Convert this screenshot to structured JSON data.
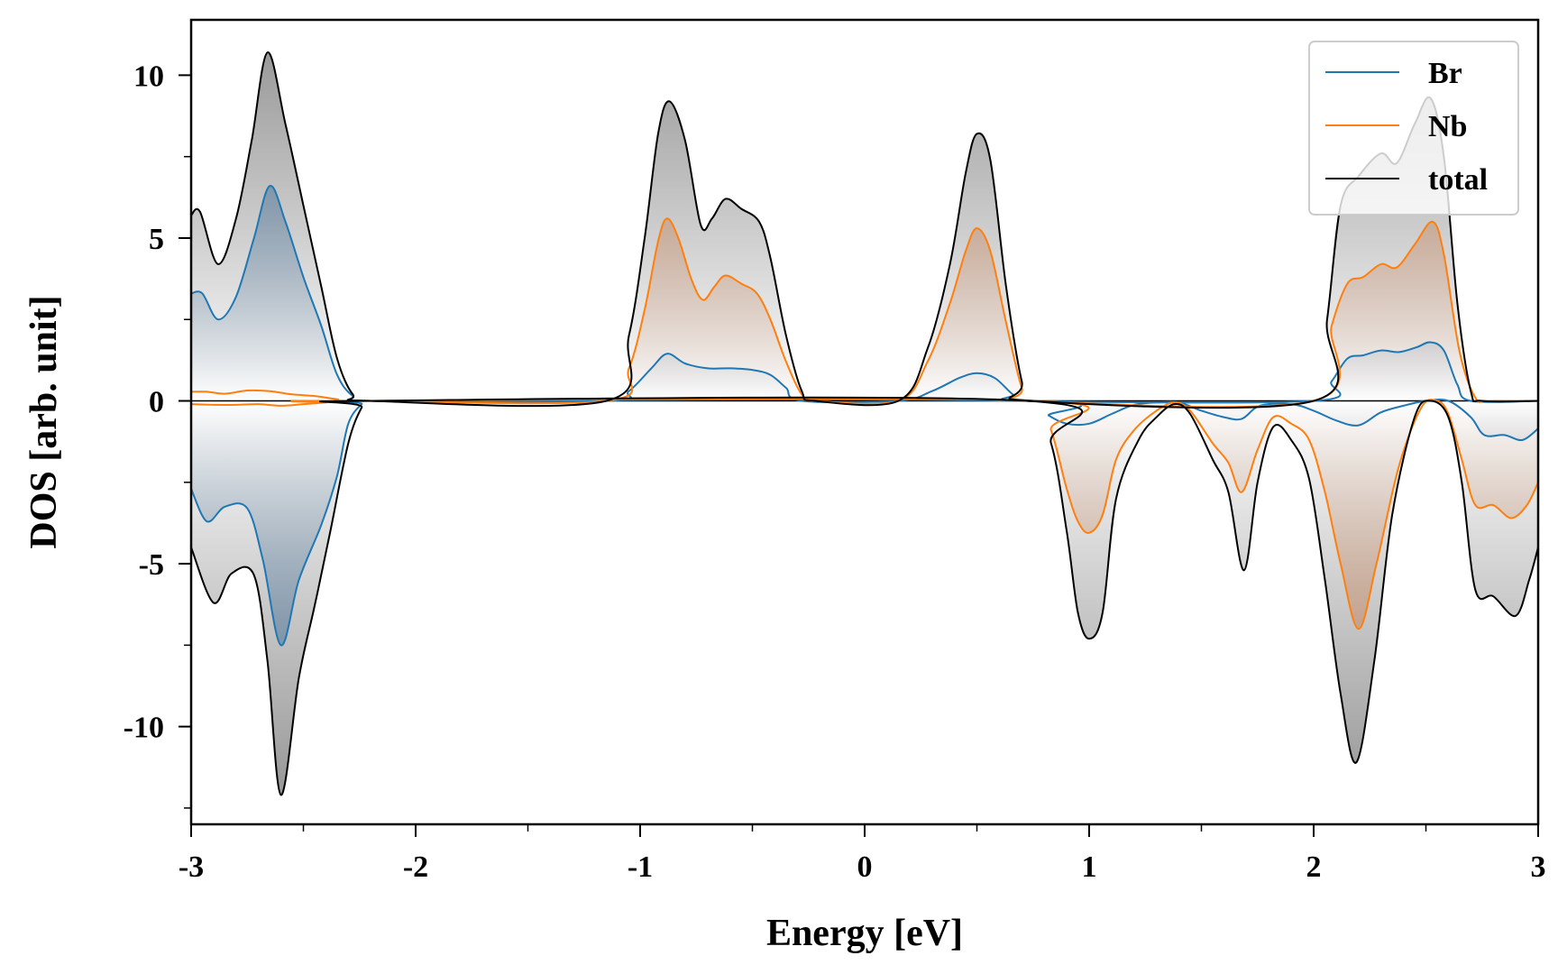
{
  "chart_data": {
    "type": "area",
    "title": "",
    "xlabel": "Energy [eV]",
    "ylabel": "DOS [arb. unit]",
    "xlim": [
      -3,
      3
    ],
    "ylim": [
      -13,
      11.7
    ],
    "xticks": [
      -3,
      -2,
      -1,
      0,
      1,
      2,
      3
    ],
    "xtick_labels": [
      "-3",
      "-2",
      "-1",
      "0",
      "1",
      "2",
      "3"
    ],
    "yticks": [
      -10,
      -5,
      0,
      5,
      10
    ],
    "ytick_labels": [
      "-10",
      "-5",
      "0",
      "5",
      "10"
    ],
    "grid": false,
    "legend": {
      "placement": "top-right",
      "entries": [
        {
          "label": "Br",
          "color": "#1f77b4"
        },
        {
          "label": "Nb",
          "color": "#ff7f0e"
        },
        {
          "label": "total",
          "color": "#000000"
        }
      ]
    },
    "fill_colors": {
      "Br": "#4a7296",
      "Nb": "#c4835a",
      "total": "#8a8a8a"
    },
    "series": [
      {
        "name": "Br",
        "color": "#1f77b4",
        "spin_up": [
          [
            -3.0,
            3.3
          ],
          [
            -2.95,
            3.3
          ],
          [
            -2.88,
            2.5
          ],
          [
            -2.8,
            3.2
          ],
          [
            -2.72,
            5.0
          ],
          [
            -2.65,
            6.6
          ],
          [
            -2.58,
            5.5
          ],
          [
            -2.5,
            3.8
          ],
          [
            -2.42,
            2.3
          ],
          [
            -2.35,
            0.8
          ],
          [
            -2.28,
            0.15
          ],
          [
            -2.2,
            0.0
          ],
          [
            -1.15,
            0.0
          ],
          [
            -1.05,
            0.3
          ],
          [
            -0.95,
            1.0
          ],
          [
            -0.88,
            1.45
          ],
          [
            -0.8,
            1.15
          ],
          [
            -0.7,
            1.0
          ],
          [
            -0.6,
            1.0
          ],
          [
            -0.5,
            0.95
          ],
          [
            -0.42,
            0.8
          ],
          [
            -0.35,
            0.4
          ],
          [
            -0.28,
            0.0
          ],
          [
            0.15,
            0.0
          ],
          [
            0.3,
            0.3
          ],
          [
            0.42,
            0.7
          ],
          [
            0.5,
            0.85
          ],
          [
            0.58,
            0.7
          ],
          [
            0.66,
            0.2
          ],
          [
            0.72,
            0.0
          ],
          [
            2.0,
            0.0
          ],
          [
            2.08,
            0.6
          ],
          [
            2.15,
            1.3
          ],
          [
            2.22,
            1.4
          ],
          [
            2.3,
            1.55
          ],
          [
            2.38,
            1.5
          ],
          [
            2.46,
            1.65
          ],
          [
            2.52,
            1.8
          ],
          [
            2.58,
            1.55
          ],
          [
            2.64,
            0.5
          ],
          [
            2.7,
            0.0
          ],
          [
            3.0,
            0.0
          ]
        ],
        "spin_down": [
          [
            -3.0,
            -2.7
          ],
          [
            -2.93,
            -3.7
          ],
          [
            -2.85,
            -3.25
          ],
          [
            -2.75,
            -3.3
          ],
          [
            -2.68,
            -4.9
          ],
          [
            -2.6,
            -7.5
          ],
          [
            -2.52,
            -5.5
          ],
          [
            -2.42,
            -3.8
          ],
          [
            -2.35,
            -2.3
          ],
          [
            -2.3,
            -0.7
          ],
          [
            -2.24,
            -0.1
          ],
          [
            -2.2,
            0.0
          ],
          [
            0.72,
            0.0
          ],
          [
            0.82,
            -0.45
          ],
          [
            0.9,
            -0.7
          ],
          [
            1.0,
            -0.7
          ],
          [
            1.1,
            -0.4
          ],
          [
            1.2,
            -0.12
          ],
          [
            1.3,
            -0.05
          ],
          [
            1.4,
            -0.05
          ],
          [
            1.5,
            -0.3
          ],
          [
            1.6,
            -0.5
          ],
          [
            1.68,
            -0.55
          ],
          [
            1.76,
            -0.15
          ],
          [
            1.9,
            -0.1
          ],
          [
            2.0,
            -0.3
          ],
          [
            2.1,
            -0.6
          ],
          [
            2.2,
            -0.75
          ],
          [
            2.3,
            -0.35
          ],
          [
            2.4,
            -0.15
          ],
          [
            2.5,
            0.0
          ],
          [
            2.6,
            0.0
          ],
          [
            2.7,
            -0.5
          ],
          [
            2.76,
            -1.05
          ],
          [
            2.85,
            -1.05
          ],
          [
            2.93,
            -1.2
          ],
          [
            3.0,
            -0.85
          ]
        ]
      },
      {
        "name": "Nb",
        "color": "#ff7f0e",
        "spin_up": [
          [
            -3.0,
            0.28
          ],
          [
            -2.93,
            0.28
          ],
          [
            -2.85,
            0.22
          ],
          [
            -2.75,
            0.32
          ],
          [
            -2.65,
            0.3
          ],
          [
            -2.55,
            0.2
          ],
          [
            -2.45,
            0.15
          ],
          [
            -2.35,
            0.05
          ],
          [
            -2.25,
            0.0
          ],
          [
            -1.15,
            0.0
          ],
          [
            -1.05,
            1.0
          ],
          [
            -0.98,
            2.8
          ],
          [
            -0.92,
            4.9
          ],
          [
            -0.88,
            5.6
          ],
          [
            -0.83,
            5.0
          ],
          [
            -0.77,
            3.7
          ],
          [
            -0.72,
            3.1
          ],
          [
            -0.67,
            3.5
          ],
          [
            -0.62,
            3.85
          ],
          [
            -0.55,
            3.6
          ],
          [
            -0.48,
            3.3
          ],
          [
            -0.42,
            2.5
          ],
          [
            -0.35,
            1.2
          ],
          [
            -0.28,
            0.2
          ],
          [
            -0.22,
            0.0
          ],
          [
            0.15,
            0.0
          ],
          [
            0.28,
            1.2
          ],
          [
            0.38,
            3.0
          ],
          [
            0.45,
            4.6
          ],
          [
            0.5,
            5.3
          ],
          [
            0.56,
            4.6
          ],
          [
            0.63,
            2.4
          ],
          [
            0.7,
            0.4
          ],
          [
            0.75,
            0.0
          ],
          [
            2.0,
            0.0
          ],
          [
            2.08,
            2.3
          ],
          [
            2.15,
            3.6
          ],
          [
            2.22,
            3.8
          ],
          [
            2.3,
            4.2
          ],
          [
            2.37,
            4.1
          ],
          [
            2.45,
            4.8
          ],
          [
            2.53,
            5.5
          ],
          [
            2.58,
            4.5
          ],
          [
            2.65,
            1.5
          ],
          [
            2.72,
            0.1
          ],
          [
            2.78,
            0.0
          ],
          [
            3.0,
            0.0
          ]
        ],
        "spin_down": [
          [
            -3.0,
            -0.1
          ],
          [
            -2.9,
            -0.12
          ],
          [
            -2.8,
            -0.12
          ],
          [
            -2.7,
            -0.1
          ],
          [
            -2.6,
            -0.15
          ],
          [
            -2.5,
            -0.1
          ],
          [
            -2.4,
            -0.05
          ],
          [
            -2.3,
            0.0
          ],
          [
            0.75,
            0.0
          ],
          [
            0.83,
            -0.9
          ],
          [
            0.9,
            -2.7
          ],
          [
            0.95,
            -3.7
          ],
          [
            1.0,
            -4.05
          ],
          [
            1.06,
            -3.5
          ],
          [
            1.12,
            -1.8
          ],
          [
            1.2,
            -0.9
          ],
          [
            1.3,
            -0.3
          ],
          [
            1.38,
            -0.05
          ],
          [
            1.45,
            -0.3
          ],
          [
            1.55,
            -1.3
          ],
          [
            1.62,
            -1.9
          ],
          [
            1.68,
            -2.8
          ],
          [
            1.75,
            -1.5
          ],
          [
            1.82,
            -0.5
          ],
          [
            1.9,
            -0.7
          ],
          [
            1.98,
            -1.2
          ],
          [
            2.05,
            -2.8
          ],
          [
            2.12,
            -5.0
          ],
          [
            2.2,
            -7.0
          ],
          [
            2.28,
            -5.0
          ],
          [
            2.38,
            -2.0
          ],
          [
            2.48,
            -0.2
          ],
          [
            2.55,
            0.0
          ],
          [
            2.6,
            -0.4
          ],
          [
            2.66,
            -1.8
          ],
          [
            2.72,
            -3.2
          ],
          [
            2.8,
            -3.2
          ],
          [
            2.88,
            -3.6
          ],
          [
            2.95,
            -3.2
          ],
          [
            3.0,
            -2.5
          ]
        ]
      },
      {
        "name": "total",
        "color": "#000000",
        "spin_up": [
          [
            -3.0,
            5.7
          ],
          [
            -2.96,
            5.8
          ],
          [
            -2.88,
            4.2
          ],
          [
            -2.8,
            5.6
          ],
          [
            -2.73,
            8.0
          ],
          [
            -2.66,
            10.7
          ],
          [
            -2.58,
            8.5
          ],
          [
            -2.5,
            6.0
          ],
          [
            -2.42,
            3.5
          ],
          [
            -2.35,
            1.3
          ],
          [
            -2.28,
            0.2
          ],
          [
            -2.2,
            0.0
          ],
          [
            -1.15,
            0.0
          ],
          [
            -1.05,
            2.0
          ],
          [
            -0.98,
            5.0
          ],
          [
            -0.92,
            8.2
          ],
          [
            -0.87,
            9.2
          ],
          [
            -0.8,
            8.0
          ],
          [
            -0.73,
            5.4
          ],
          [
            -0.68,
            5.6
          ],
          [
            -0.62,
            6.2
          ],
          [
            -0.55,
            5.9
          ],
          [
            -0.47,
            5.5
          ],
          [
            -0.42,
            4.4
          ],
          [
            -0.35,
            2.0
          ],
          [
            -0.28,
            0.3
          ],
          [
            -0.22,
            0.0
          ],
          [
            0.15,
            0.0
          ],
          [
            0.28,
            1.6
          ],
          [
            0.38,
            4.2
          ],
          [
            0.45,
            7.0
          ],
          [
            0.5,
            8.2
          ],
          [
            0.56,
            7.4
          ],
          [
            0.63,
            3.5
          ],
          [
            0.7,
            0.6
          ],
          [
            0.75,
            0.0
          ],
          [
            2.0,
            0.0
          ],
          [
            2.06,
            2.5
          ],
          [
            2.12,
            6.0
          ],
          [
            2.2,
            6.9
          ],
          [
            2.3,
            7.6
          ],
          [
            2.37,
            7.3
          ],
          [
            2.45,
            8.5
          ],
          [
            2.52,
            9.3
          ],
          [
            2.58,
            7.5
          ],
          [
            2.64,
            3.0
          ],
          [
            2.7,
            0.3
          ],
          [
            2.75,
            0.0
          ],
          [
            3.0,
            0.0
          ]
        ],
        "spin_down": [
          [
            -3.0,
            -4.5
          ],
          [
            -2.9,
            -6.2
          ],
          [
            -2.82,
            -5.3
          ],
          [
            -2.72,
            -5.35
          ],
          [
            -2.66,
            -8.0
          ],
          [
            -2.6,
            -12.1
          ],
          [
            -2.52,
            -8.5
          ],
          [
            -2.45,
            -6.3
          ],
          [
            -2.38,
            -4.0
          ],
          [
            -2.3,
            -1.3
          ],
          [
            -2.24,
            -0.2
          ],
          [
            -2.2,
            0.0
          ],
          [
            0.72,
            0.0
          ],
          [
            0.83,
            -1.3
          ],
          [
            0.9,
            -4.0
          ],
          [
            0.95,
            -6.5
          ],
          [
            1.0,
            -7.3
          ],
          [
            1.06,
            -6.5
          ],
          [
            1.12,
            -3.0
          ],
          [
            1.22,
            -1.2
          ],
          [
            1.3,
            -0.5
          ],
          [
            1.38,
            -0.1
          ],
          [
            1.45,
            -0.4
          ],
          [
            1.55,
            -1.8
          ],
          [
            1.62,
            -2.8
          ],
          [
            1.69,
            -5.2
          ],
          [
            1.75,
            -2.5
          ],
          [
            1.82,
            -0.8
          ],
          [
            1.9,
            -1.2
          ],
          [
            1.98,
            -2.4
          ],
          [
            2.05,
            -5.5
          ],
          [
            2.12,
            -9.0
          ],
          [
            2.19,
            -11.1
          ],
          [
            2.27,
            -8.0
          ],
          [
            2.35,
            -3.5
          ],
          [
            2.45,
            -0.5
          ],
          [
            2.52,
            0.0
          ],
          [
            2.6,
            -0.5
          ],
          [
            2.66,
            -2.5
          ],
          [
            2.72,
            -5.8
          ],
          [
            2.8,
            -6.0
          ],
          [
            2.9,
            -6.6
          ],
          [
            2.96,
            -5.5
          ],
          [
            3.0,
            -4.5
          ]
        ]
      }
    ]
  }
}
